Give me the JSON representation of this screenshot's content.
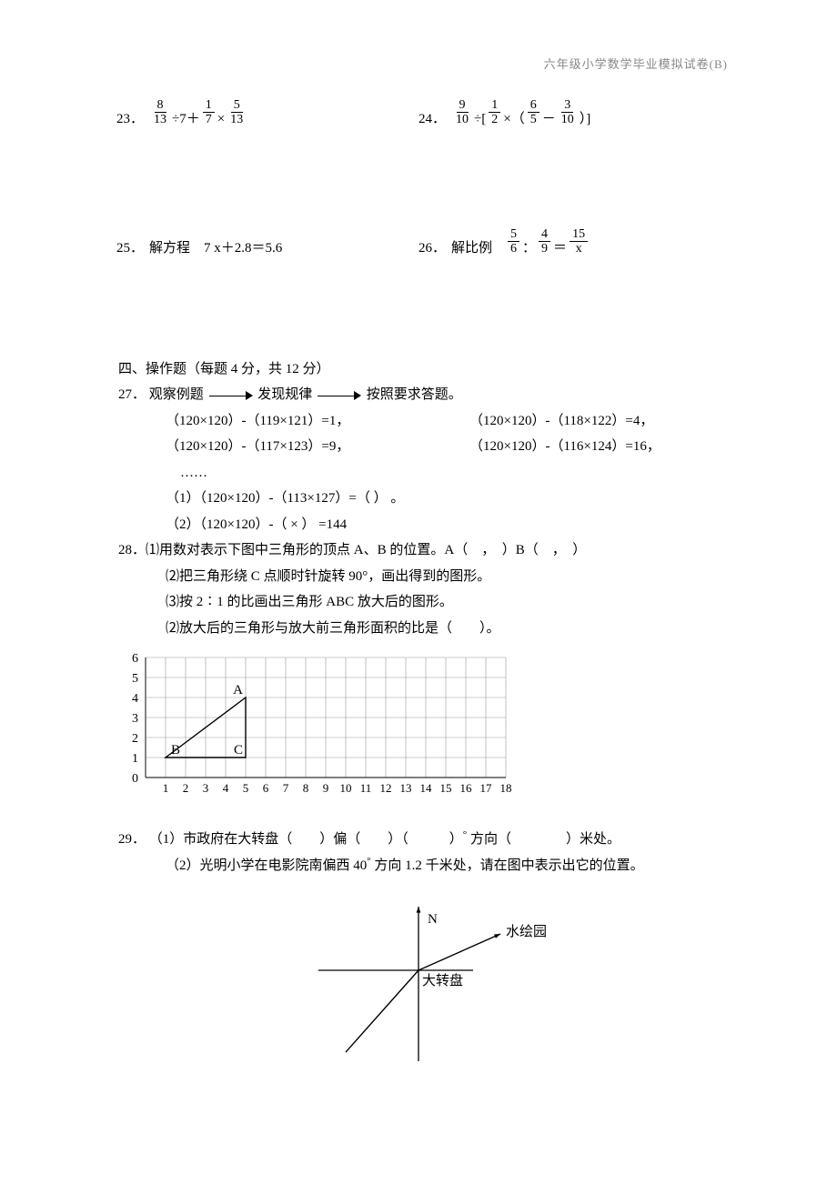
{
  "header": "六年级小学数学毕业模拟试卷(B)",
  "q23": {
    "num": "23．",
    "f1n": "8",
    "f1d": "13",
    "t1": "÷7＋",
    "f2n": "1",
    "f2d": "7",
    "t2": "×",
    "f3n": "5",
    "f3d": "13"
  },
  "q24": {
    "num": "24．",
    "f1n": "9",
    "f1d": "10",
    "t1": "÷[",
    "f2n": "1",
    "f2d": "2",
    "t2": "×（",
    "f3n": "6",
    "f3d": "5",
    "t3": "－",
    "f4n": "3",
    "f4d": "10",
    "t4": "）]"
  },
  "q25": {
    "num": "25．",
    "text": "解方程　7 x＋2.8＝5.6"
  },
  "q26": {
    "num": "26．",
    "label": "解比例　",
    "f1n": "5",
    "f1d": "6",
    "t1": "：",
    "f2n": "4",
    "f2d": "9",
    "t2": "＝",
    "f3n": "15",
    "f3d": "x"
  },
  "section4": "四、操作题（每题 4 分，共 12 分）",
  "q27": {
    "num": "27．",
    "t_obs": "观察例题",
    "t_find": "发现规律",
    "t_ans": "按照要求答题。",
    "row1a": "（120×120）-（119×121）=1，",
    "row1b": "（120×120）-（118×122）=4，",
    "row2a": "（120×120）-（117×123）=9，",
    "row2b": "（120×120）-（116×124）=16，",
    "dots": "……",
    "sub1": "（1）（120×120）-（113×127）=（              ）  。",
    "sub2": "（2）（120×120）-（         ×          ） =144"
  },
  "q28": {
    "num": "28．",
    "l1": "⑴用数对表示下图中三角形的顶点 A、B 的位置。A（　，　）B（　，　）",
    "l2": "⑵把三角形绕 C 点顺时针旋转 90°，画出得到的图形。",
    "l3": "⑶按 2∶1 的比画出三角形 ABC 放大后的图形。",
    "l4": "⑵放大后的三角形与放大前三角形面积的比是（　　）。"
  },
  "grid": {
    "cols": 18,
    "rows": 6,
    "cell": 22,
    "x_labels": [
      "1",
      "2",
      "3",
      "4",
      "5",
      "6",
      "7",
      "8",
      "9",
      "10",
      "11",
      "12",
      "13",
      "14",
      "15",
      "16",
      "17",
      "18"
    ],
    "y_labels": [
      "0",
      "1",
      "2",
      "3",
      "4",
      "5",
      "6"
    ],
    "grid_color": "#999",
    "axis_color": "#333",
    "points": {
      "A": {
        "x": 5,
        "y": 4,
        "label": "A"
      },
      "B": {
        "x": 1,
        "y": 1,
        "label": "B"
      },
      "C": {
        "x": 5,
        "y": 1,
        "label": "C"
      }
    }
  },
  "q29": {
    "num": "29．",
    "l1a": "（1）市政府在大转盘（　　）偏（　　）（　　　）",
    "l1deg": "°",
    "l1b": "方向（　　　　）米处。",
    "l2a": "（2）光明小学在电影院南偏西 40",
    "l2deg": "°",
    "l2b": "方向 1.2 千米处，请在图中表示出它的位置。"
  },
  "compass": {
    "labels": {
      "north": "N",
      "center": "大转盘",
      "ne": "水绘园"
    },
    "axis_color": "#000"
  }
}
